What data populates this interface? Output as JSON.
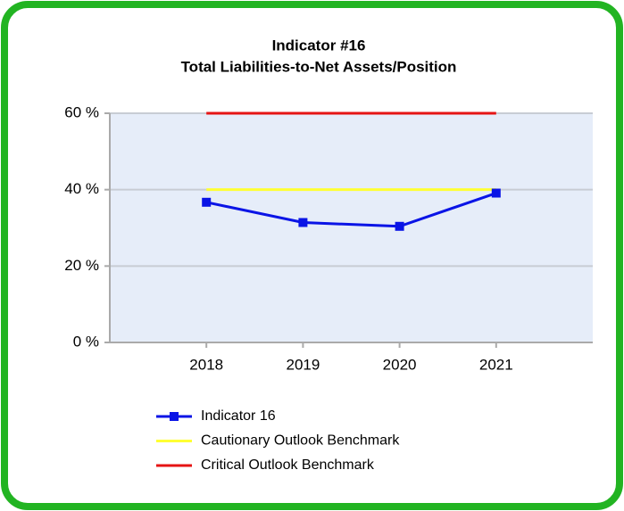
{
  "chart_data": {
    "type": "line",
    "title": [
      "Indicator #16",
      "Total Liabilities-to-Net Assets/Position"
    ],
    "categories": [
      "2018",
      "2019",
      "2020",
      "2021"
    ],
    "series": [
      {
        "name": "Indicator 16",
        "color": "#0a14e6",
        "values": [
          36.7,
          31.4,
          30.4,
          39.1
        ],
        "marker": "square"
      },
      {
        "name": "Cautionary Outlook Benchmark",
        "color": "#ffff33",
        "values": [
          40,
          40,
          40,
          40
        ]
      },
      {
        "name": "Critical Outlook Benchmark",
        "color": "#e61414",
        "values": [
          60,
          60,
          60,
          60
        ]
      }
    ],
    "ylim": [
      0,
      60
    ],
    "yticks": [
      {
        "value": 0,
        "label": "0 %"
      },
      {
        "value": 20,
        "label": "20 %"
      },
      {
        "value": 40,
        "label": "40 %"
      },
      {
        "value": 60,
        "label": "60 %"
      }
    ],
    "grid": true
  }
}
